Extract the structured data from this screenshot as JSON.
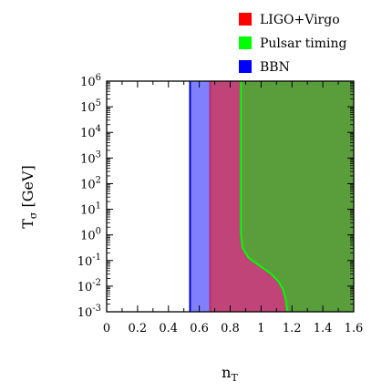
{
  "chart_data": {
    "type": "area",
    "title": "",
    "xlabel": "n",
    "xlabel_sub": "T",
    "ylabel": "T",
    "ylabel_sub": "σ",
    "ylabel_unit": " [GeV]",
    "xlim": [
      0,
      1.6
    ],
    "ylim_log10": [
      -3,
      6
    ],
    "y_scale": "log",
    "grid": false,
    "legend_position": "top-right",
    "x_ticks": [
      {
        "value": 0,
        "label": "0"
      },
      {
        "value": 0.2,
        "label": "0.2"
      },
      {
        "value": 0.4,
        "label": "0.4"
      },
      {
        "value": 0.6,
        "label": "0.6"
      },
      {
        "value": 0.8,
        "label": "0.8"
      },
      {
        "value": 1.0,
        "label": "1"
      },
      {
        "value": 1.2,
        "label": "1.2"
      },
      {
        "value": 1.4,
        "label": "1.4"
      },
      {
        "value": 1.6,
        "label": "1.6"
      }
    ],
    "y_ticks": [
      {
        "exp": -3,
        "base": "10",
        "sup": "-3"
      },
      {
        "exp": -2,
        "base": "10",
        "sup": "-2"
      },
      {
        "exp": -1,
        "base": "10",
        "sup": "-1"
      },
      {
        "exp": 0,
        "base": "10",
        "sup": "0"
      },
      {
        "exp": 1,
        "base": "10",
        "sup": "1"
      },
      {
        "exp": 2,
        "base": "10",
        "sup": "2"
      },
      {
        "exp": 3,
        "base": "10",
        "sup": "3"
      },
      {
        "exp": 4,
        "base": "10",
        "sup": "4"
      },
      {
        "exp": 5,
        "base": "10",
        "sup": "5"
      },
      {
        "exp": 6,
        "base": "10",
        "sup": "6"
      }
    ],
    "series": [
      {
        "name": "BBN",
        "legend_color": "#0000ff",
        "fill": "#8080ff",
        "edge": "#0000cc",
        "region": "n_T > boundary",
        "boundary": [
          {
            "y_exp": -3,
            "x": 0.54
          },
          {
            "y_exp": 6,
            "x": 0.54
          }
        ]
      },
      {
        "name": "LIGO+Virgo",
        "legend_color": "#ff0000",
        "fill": "#c04478",
        "edge": "#b03070",
        "region": "n_T > boundary",
        "boundary": [
          {
            "y_exp": -3,
            "x": 0.67
          },
          {
            "y_exp": 6,
            "x": 0.67
          }
        ]
      },
      {
        "name": "Pulsar timing",
        "legend_color": "#00ff00",
        "fill": "#5a9e3c",
        "edge": "#00ff00",
        "region": "n_T > boundary",
        "boundary": [
          {
            "y_exp": 6,
            "x": 0.87
          },
          {
            "y_exp": 2,
            "x": 0.87
          },
          {
            "y_exp": 0,
            "x": 0.87
          },
          {
            "y_exp": -0.5,
            "x": 0.88
          },
          {
            "y_exp": -0.9,
            "x": 0.92
          },
          {
            "y_exp": -1.2,
            "x": 0.99
          },
          {
            "y_exp": -1.5,
            "x": 1.06
          },
          {
            "y_exp": -1.8,
            "x": 1.11
          },
          {
            "y_exp": -2.1,
            "x": 1.14
          },
          {
            "y_exp": -2.5,
            "x": 1.16
          },
          {
            "y_exp": -3,
            "x": 1.17
          }
        ]
      }
    ]
  }
}
